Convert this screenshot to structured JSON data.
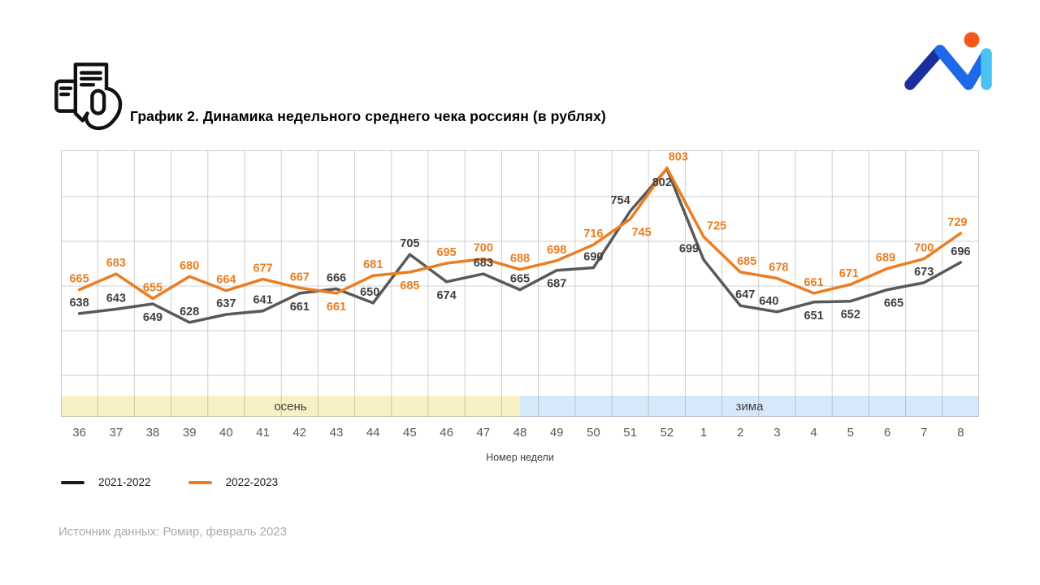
{
  "header": {
    "title": "График 2. Динамика недельного среднего чека россиян (в рублях)"
  },
  "logo": {
    "name": "M logo with orange dot",
    "colors": {
      "dot": "#F4581C",
      "navy": "#1A2F9E",
      "royal": "#1D69E8",
      "cyan": "#4AC2F2"
    }
  },
  "chart_data": {
    "type": "line",
    "title": "График 2. Динамика недельного среднего чека россиян (в рублях)",
    "xlabel": "Номер недели",
    "ylabel": "",
    "ylim": [
      521,
      823
    ],
    "grid": true,
    "legend_position": "bottom-left",
    "categories": [
      "36",
      "37",
      "38",
      "39",
      "40",
      "41",
      "42",
      "43",
      "44",
      "45",
      "46",
      "47",
      "48",
      "49",
      "50",
      "51",
      "52",
      "1",
      "2",
      "3",
      "4",
      "5",
      "6",
      "7",
      "8"
    ],
    "series": [
      {
        "name": "2021-2022",
        "color": "#595959",
        "label_color": "#3F3F3F",
        "values": [
          638,
          643,
          649,
          628,
          637,
          641,
          661,
          666,
          650,
          705,
          674,
          683,
          665,
          687,
          690,
          754,
          802,
          699,
          647,
          640,
          651,
          652,
          665,
          673,
          696
        ],
        "label_side": [
          "a",
          "a",
          "b",
          "a",
          "a",
          "a",
          "b",
          "a",
          "a",
          "a",
          "b",
          "a",
          "a",
          "b",
          "a",
          "a",
          "b",
          "a",
          "a",
          "a",
          "b",
          "b",
          "b",
          "a",
          "a"
        ],
        "label_dx": [
          0,
          0,
          0,
          0,
          0,
          0,
          0,
          0,
          -4,
          0,
          0,
          0,
          0,
          0,
          0,
          -12,
          -6,
          -18,
          6,
          -10,
          0,
          0,
          8,
          0,
          0
        ]
      },
      {
        "name": "2022-2023",
        "color": "#EB7D22",
        "label_color": "#E87E23",
        "values": [
          665,
          683,
          655,
          680,
          664,
          677,
          667,
          661,
          681,
          685,
          695,
          700,
          688,
          698,
          716,
          745,
          803,
          725,
          685,
          678,
          661,
          671,
          689,
          700,
          729
        ],
        "label_side": [
          "a",
          "a",
          "a",
          "a",
          "a",
          "a",
          "a",
          "b",
          "a",
          "b",
          "a",
          "a",
          "a",
          "a",
          "a",
          "b",
          "a",
          "a",
          "a",
          "a",
          "a",
          "a",
          "a",
          "a",
          "a"
        ],
        "label_dx": [
          0,
          0,
          0,
          0,
          0,
          0,
          0,
          0,
          0,
          0,
          0,
          0,
          0,
          0,
          0,
          14,
          14,
          16,
          8,
          2,
          0,
          -2,
          -2,
          0,
          -4
        ]
      }
    ],
    "bands": [
      {
        "label": "осень",
        "color": "#F8F1C4",
        "from_index": 0,
        "to_index": 12.5
      },
      {
        "label": "зима",
        "color": "#D6E9FA",
        "from_index": 12.5,
        "to_index": 25
      }
    ]
  },
  "legend": {
    "items": [
      {
        "label": "2021-2022",
        "color": "#1A1A1A"
      },
      {
        "label": "2022-2023",
        "color": "#EB7D22"
      }
    ]
  },
  "footer": {
    "source": "Источник данных: Ромир, февраль 2023"
  }
}
